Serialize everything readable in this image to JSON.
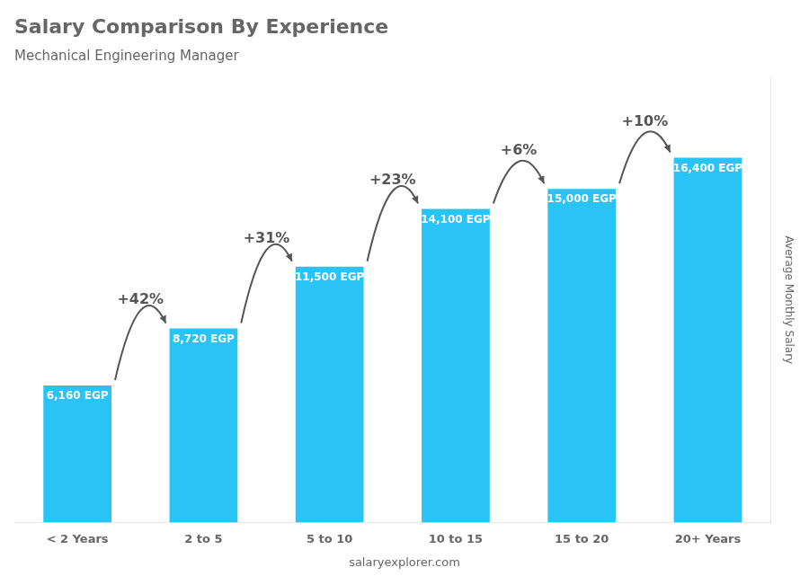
{
  "chart_data": {
    "type": "bar",
    "title": "Salary Comparison By Experience",
    "subtitle": "Mechanical Engineering Manager",
    "ylabel": "Average Monthly Salary",
    "caption": "salaryexplorer.com",
    "categories": [
      "< 2 Years",
      "2 to 5",
      "5 to 10",
      "10 to 15",
      "15 to 20",
      "20+ Years"
    ],
    "values": [
      6160,
      8720,
      11500,
      14100,
      15000,
      16400
    ],
    "value_labels": [
      "6,160 EGP",
      "8,720 EGP",
      "11,500 EGP",
      "14,100 EGP",
      "15,000 EGP",
      "16,400 EGP"
    ],
    "data_labels": true,
    "annotations": [
      "+42%",
      "+31%",
      "+23%",
      "+6%",
      "+10%"
    ],
    "color": "#29c4f5",
    "ylim": [
      0,
      20000
    ],
    "grid": false,
    "tick_labels": "x"
  }
}
